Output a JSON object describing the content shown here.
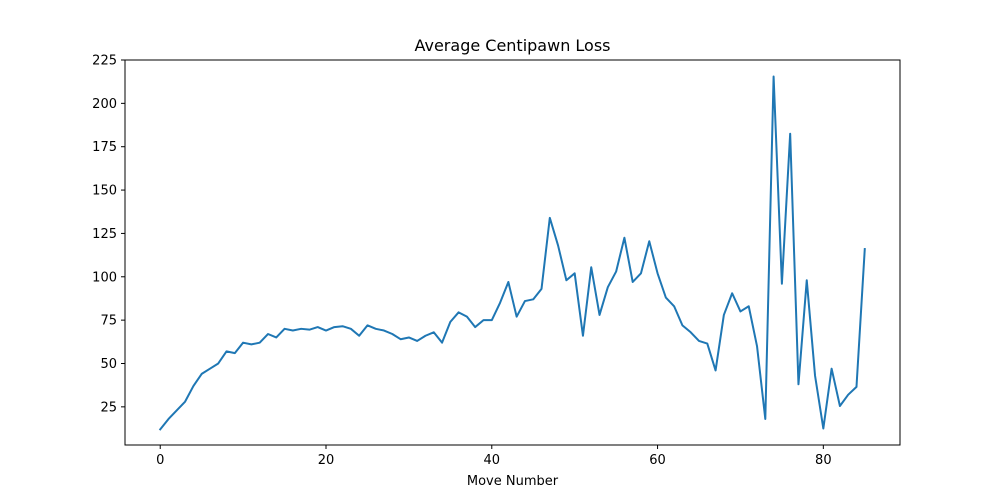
{
  "chart_data": {
    "type": "line",
    "title": "Average Centipawn Loss",
    "xlabel": "Move Number",
    "ylabel": "",
    "xlim": [
      -4.25,
      89.25
    ],
    "ylim": [
      3,
      225
    ],
    "xticks": [
      0,
      20,
      40,
      60,
      80
    ],
    "yticks": [
      25,
      50,
      75,
      100,
      125,
      150,
      175,
      200,
      225
    ],
    "grid": false,
    "legend": "none",
    "color": "#1f77b4",
    "series": [
      {
        "x": [
          0,
          1,
          2,
          3,
          4,
          5,
          6,
          7,
          8,
          9,
          10,
          11,
          12,
          13,
          14,
          15,
          16,
          17,
          18,
          19,
          20,
          21,
          22,
          23,
          24,
          25,
          26,
          27,
          28,
          29,
          30,
          31,
          32,
          33,
          34,
          35,
          36,
          37,
          38,
          39,
          40,
          41,
          42,
          43,
          44,
          45,
          46,
          47,
          48,
          49,
          50,
          51,
          52,
          53,
          54,
          55,
          56,
          57,
          58,
          59,
          60,
          61,
          62,
          63,
          64,
          65,
          66,
          67,
          68,
          69,
          70,
          71,
          72,
          73,
          74,
          75,
          76,
          77,
          78,
          79,
          80,
          81,
          82,
          83,
          84,
          85
        ],
        "values": [
          12,
          18,
          23,
          28,
          37,
          44,
          47,
          50,
          57,
          56,
          62,
          61,
          62,
          67,
          65,
          70,
          69,
          70,
          69.5,
          71,
          69,
          71,
          71.5,
          70,
          66,
          72,
          70,
          69,
          67,
          64,
          65,
          63,
          66,
          68,
          62,
          74,
          79.5,
          77,
          71,
          75,
          75,
          85,
          97,
          77,
          86,
          87,
          93,
          134,
          118,
          98,
          102,
          66,
          105.5,
          78,
          94,
          103,
          122.5,
          97,
          102,
          120.5,
          102,
          88,
          83,
          72,
          68,
          63,
          61.5,
          46,
          78,
          90.5,
          80,
          83,
          60,
          18,
          215.5,
          96,
          182.5,
          38,
          98,
          43,
          12.5,
          47,
          25.5,
          32,
          36.5,
          116
        ]
      }
    ]
  }
}
